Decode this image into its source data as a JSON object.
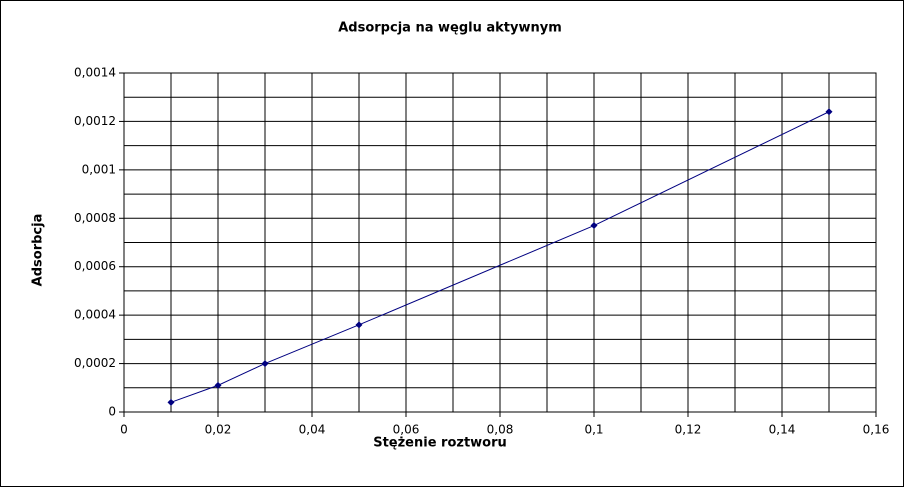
{
  "chart_data": {
    "type": "line",
    "title": "Adsorpcja na węglu aktywnym",
    "xlabel": "Stężenie roztworu",
    "ylabel": "Adsorbcja",
    "x": [
      0.01,
      0.02,
      0.03,
      0.05,
      0.1,
      0.15
    ],
    "series": [
      {
        "color": "#000080",
        "values": [
          4e-05,
          0.00011,
          0.0002,
          0.00036,
          0.00077,
          0.00124
        ]
      }
    ],
    "xlim": [
      0,
      0.16
    ],
    "xticks": [
      0,
      {
        "value": 0.02,
        "label": "0,02"
      },
      {
        "value": 0.04,
        "label": "0,04"
      },
      {
        "value": 0.06,
        "label": "0,06"
      },
      {
        "value": 0.08,
        "label": "0,08"
      },
      {
        "value": 0.1,
        "label": "0,1"
      },
      {
        "value": 0.12,
        "label": "0,12"
      },
      {
        "value": 0.14,
        "label": "0,14"
      },
      {
        "value": 0.16,
        "label": "0,16"
      }
    ],
    "ylim": [
      0,
      0.0014
    ],
    "yticks": [
      0,
      {
        "value": 0.0002,
        "label": "0,0002"
      },
      {
        "value": 0.0004,
        "label": "0,0004"
      },
      {
        "value": 0.0006,
        "label": "0,0006"
      },
      {
        "value": 0.0008,
        "label": "0,0008"
      },
      {
        "value": 0.001,
        "label": "0,001"
      },
      {
        "value": 0.0012,
        "label": "0,0012"
      },
      {
        "value": 0.0014,
        "label": "0,0014"
      }
    ],
    "grid": true
  }
}
